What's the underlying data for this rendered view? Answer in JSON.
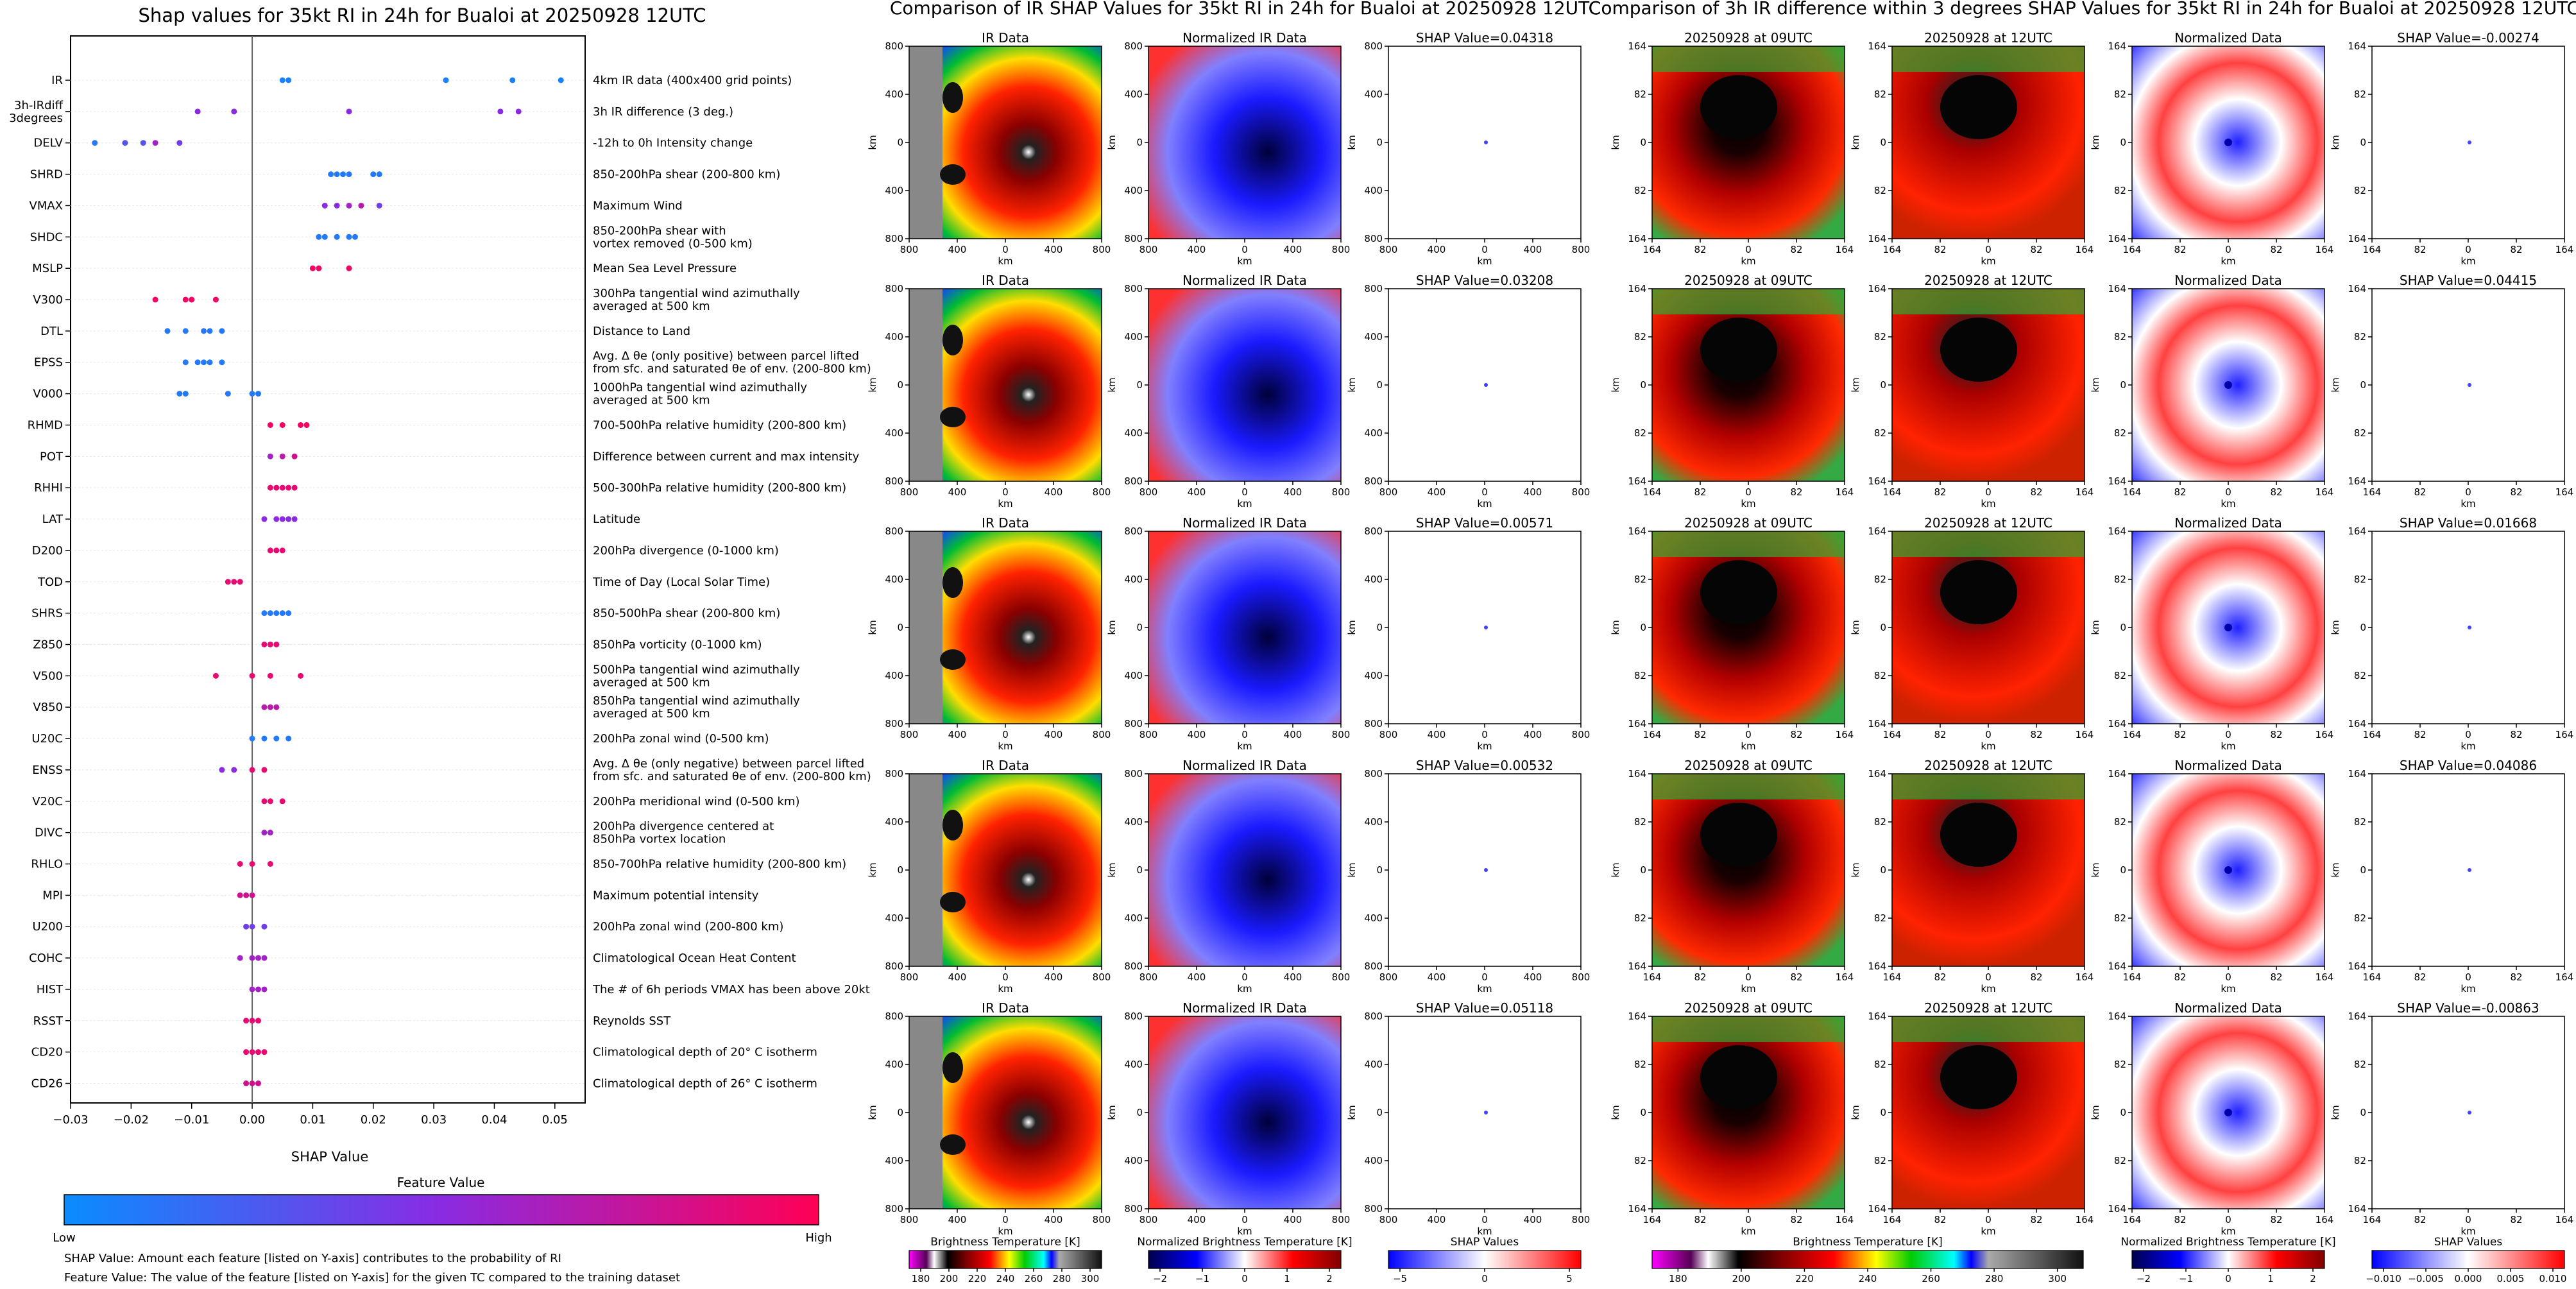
{
  "shap": {
    "title": "Shap values for 35kt RI in 24h for Bualoi at 20250928 12UTC",
    "xlabel": "SHAP Value",
    "xticks": [
      "−0.03",
      "−0.02",
      "−0.01",
      "0.00",
      "0.01",
      "0.02",
      "0.03",
      "0.04",
      "0.05"
    ],
    "colorbar": {
      "title": "Feature Value",
      "low": "Low",
      "high": "High"
    },
    "footnote1": "SHAP Value: Amount each feature [listed on Y-axis] contributes to the probability of RI",
    "footnote2": "Feature Value: The value of the feature [listed on Y-axis] for the given TC compared to the training dataset"
  },
  "chart_data": {
    "type": "scatter",
    "title": "Shap values for 35kt RI in 24h for Bualoi at 20250928 12UTC",
    "xlabel": "SHAP Value",
    "xlim": [
      -0.03,
      0.055
    ],
    "colors": {
      "low": "#0a8cff",
      "mid": "#8a2be2",
      "high": "#ff0055"
    },
    "features": [
      {
        "name": "IR",
        "desc": "4km IR data (400x400 grid points)",
        "points": [
          [
            0.005,
            0.05
          ],
          [
            0.006,
            0.05
          ],
          [
            0.032,
            0.05
          ],
          [
            0.043,
            0.05
          ],
          [
            0.051,
            0.05
          ]
        ]
      },
      {
        "name": "3h-IRdiff\n3degrees",
        "desc": "3h IR difference (3 deg.)",
        "points": [
          [
            -0.009,
            0.5
          ],
          [
            -0.003,
            0.5
          ],
          [
            0.016,
            0.5
          ],
          [
            0.041,
            0.5
          ],
          [
            0.044,
            0.5
          ]
        ]
      },
      {
        "name": "DELV",
        "desc": "-12h to 0h Intensity change",
        "points": [
          [
            -0.026,
            0.1
          ],
          [
            -0.021,
            0.3
          ],
          [
            -0.018,
            0.3
          ],
          [
            -0.016,
            0.6
          ],
          [
            -0.012,
            0.4
          ]
        ]
      },
      {
        "name": "SHRD",
        "desc": "850-200hPa shear (200-800 km)",
        "points": [
          [
            0.013,
            0.1
          ],
          [
            0.014,
            0.1
          ],
          [
            0.015,
            0.1
          ],
          [
            0.016,
            0.1
          ],
          [
            0.02,
            0.1
          ],
          [
            0.021,
            0.1
          ]
        ]
      },
      {
        "name": "VMAX",
        "desc": "Maximum Wind",
        "points": [
          [
            0.012,
            0.5
          ],
          [
            0.014,
            0.5
          ],
          [
            0.016,
            0.6
          ],
          [
            0.018,
            0.7
          ],
          [
            0.021,
            0.4
          ]
        ]
      },
      {
        "name": "SHDC",
        "desc": "850-200hPa shear with\nvortex removed (0-500 km)",
        "points": [
          [
            0.011,
            0.1
          ],
          [
            0.012,
            0.1
          ],
          [
            0.014,
            0.1
          ],
          [
            0.016,
            0.1
          ],
          [
            0.017,
            0.1
          ]
        ]
      },
      {
        "name": "MSLP",
        "desc": "Mean Sea Level Pressure",
        "points": [
          [
            0.01,
            0.95
          ],
          [
            0.011,
            0.95
          ],
          [
            0.016,
            0.95
          ]
        ]
      },
      {
        "name": "V300",
        "desc": "300hPa tangential wind azimuthally\naveraged at 500 km",
        "points": [
          [
            -0.016,
            0.95
          ],
          [
            -0.011,
            0.95
          ],
          [
            -0.01,
            0.95
          ],
          [
            -0.006,
            0.95
          ]
        ]
      },
      {
        "name": "DTL",
        "desc": "Distance to Land",
        "points": [
          [
            -0.014,
            0.1
          ],
          [
            -0.011,
            0.1
          ],
          [
            -0.008,
            0.1
          ],
          [
            -0.007,
            0.1
          ],
          [
            -0.005,
            0.1
          ]
        ]
      },
      {
        "name": "EPSS",
        "desc": "Avg. Δ θe (only positive) between parcel lifted\nfrom sfc. and saturated θe of env. (200-800 km)",
        "points": [
          [
            -0.011,
            0.1
          ],
          [
            -0.009,
            0.1
          ],
          [
            -0.008,
            0.1
          ],
          [
            -0.007,
            0.1
          ],
          [
            -0.005,
            0.1
          ]
        ]
      },
      {
        "name": "V000",
        "desc": "1000hPa tangential wind azimuthally\naveraged at 500 km",
        "points": [
          [
            -0.012,
            0.1
          ],
          [
            -0.011,
            0.1
          ],
          [
            -0.004,
            0.1
          ],
          [
            0.0,
            0.1
          ],
          [
            0.001,
            0.1
          ]
        ]
      },
      {
        "name": "RHMD",
        "desc": "700-500hPa relative humidity (200-800 km)",
        "points": [
          [
            0.003,
            0.95
          ],
          [
            0.005,
            0.95
          ],
          [
            0.008,
            0.95
          ],
          [
            0.009,
            0.95
          ]
        ]
      },
      {
        "name": "POT",
        "desc": "Difference between current and max intensity",
        "points": [
          [
            0.003,
            0.6
          ],
          [
            0.005,
            0.7
          ],
          [
            0.007,
            0.8
          ]
        ]
      },
      {
        "name": "RHHI",
        "desc": "500-300hPa relative humidity (200-800 km)",
        "points": [
          [
            0.003,
            0.9
          ],
          [
            0.004,
            0.9
          ],
          [
            0.005,
            0.9
          ],
          [
            0.006,
            0.9
          ],
          [
            0.007,
            0.9
          ]
        ]
      },
      {
        "name": "LAT",
        "desc": "Latitude",
        "points": [
          [
            0.002,
            0.5
          ],
          [
            0.004,
            0.5
          ],
          [
            0.005,
            0.5
          ],
          [
            0.006,
            0.5
          ],
          [
            0.007,
            0.5
          ]
        ]
      },
      {
        "name": "D200",
        "desc": "200hPa divergence (0-1000 km)",
        "points": [
          [
            0.003,
            0.9
          ],
          [
            0.004,
            0.9
          ],
          [
            0.005,
            0.9
          ]
        ]
      },
      {
        "name": "TOD",
        "desc": "Time of Day (Local Solar Time)",
        "points": [
          [
            -0.004,
            0.9
          ],
          [
            -0.003,
            0.9
          ],
          [
            -0.002,
            0.9
          ]
        ]
      },
      {
        "name": "SHRS",
        "desc": "850-500hPa shear (200-800 km)",
        "points": [
          [
            0.002,
            0.1
          ],
          [
            0.003,
            0.1
          ],
          [
            0.004,
            0.1
          ],
          [
            0.005,
            0.1
          ],
          [
            0.006,
            0.1
          ]
        ]
      },
      {
        "name": "Z850",
        "desc": "850hPa vorticity (0-1000 km)",
        "points": [
          [
            0.002,
            0.9
          ],
          [
            0.003,
            0.9
          ],
          [
            0.004,
            0.9
          ]
        ]
      },
      {
        "name": "V500",
        "desc": "500hPa tangential wind azimuthally\naveraged at 500 km",
        "points": [
          [
            -0.006,
            0.9
          ],
          [
            0.0,
            0.9
          ],
          [
            0.003,
            0.9
          ],
          [
            0.008,
            0.9
          ]
        ]
      },
      {
        "name": "V850",
        "desc": "850hPa tangential wind azimuthally\naveraged at 500 km",
        "points": [
          [
            0.002,
            0.7
          ],
          [
            0.003,
            0.7
          ],
          [
            0.004,
            0.7
          ]
        ]
      },
      {
        "name": "U20C",
        "desc": "200hPa zonal wind (0-500 km)",
        "points": [
          [
            0.0,
            0.1
          ],
          [
            0.002,
            0.1
          ],
          [
            0.004,
            0.1
          ],
          [
            0.006,
            0.1
          ]
        ]
      },
      {
        "name": "ENSS",
        "desc": "Avg. Δ θe (only negative) between parcel lifted\nfrom sfc. and saturated θe of env. (200-800 km)",
        "points": [
          [
            -0.005,
            0.5
          ],
          [
            -0.003,
            0.5
          ],
          [
            0.0,
            0.9
          ],
          [
            0.002,
            0.9
          ]
        ]
      },
      {
        "name": "V20C",
        "desc": "200hPa meridional wind (0-500 km)",
        "points": [
          [
            0.002,
            0.9
          ],
          [
            0.003,
            0.9
          ],
          [
            0.005,
            0.9
          ]
        ]
      },
      {
        "name": "DIVC",
        "desc": "200hPa divergence centered at\n850hPa vortex location",
        "points": [
          [
            0.002,
            0.6
          ],
          [
            0.003,
            0.6
          ]
        ]
      },
      {
        "name": "RHLO",
        "desc": "850-700hPa relative humidity (200-800 km)",
        "points": [
          [
            -0.002,
            0.9
          ],
          [
            0.0,
            0.9
          ],
          [
            0.003,
            0.9
          ]
        ]
      },
      {
        "name": "MPI",
        "desc": "Maximum potential intensity",
        "points": [
          [
            -0.002,
            0.8
          ],
          [
            -0.001,
            0.8
          ],
          [
            0.0,
            0.8
          ]
        ]
      },
      {
        "name": "U200",
        "desc": "200hPa zonal wind (200-800 km)",
        "points": [
          [
            -0.001,
            0.4
          ],
          [
            0.0,
            0.4
          ],
          [
            0.002,
            0.4
          ]
        ]
      },
      {
        "name": "COHC",
        "desc": "Climatological Ocean Heat Content",
        "points": [
          [
            -0.002,
            0.6
          ],
          [
            0.0,
            0.6
          ],
          [
            0.001,
            0.6
          ],
          [
            0.002,
            0.6
          ]
        ]
      },
      {
        "name": "HIST",
        "desc": "The # of 6h periods VMAX has been above 20kt",
        "points": [
          [
            0.0,
            0.6
          ],
          [
            0.001,
            0.6
          ],
          [
            0.002,
            0.6
          ]
        ]
      },
      {
        "name": "RSST",
        "desc": "Reynolds SST",
        "points": [
          [
            -0.001,
            0.9
          ],
          [
            0.0,
            0.9
          ],
          [
            0.001,
            0.9
          ]
        ]
      },
      {
        "name": "CD20",
        "desc": "Climatological depth of 20° C isotherm",
        "points": [
          [
            -0.001,
            0.9
          ],
          [
            0.0,
            0.9
          ],
          [
            0.001,
            0.9
          ],
          [
            0.002,
            0.9
          ]
        ]
      },
      {
        "name": "CD26",
        "desc": "Climatological depth of 26° C isotherm",
        "points": [
          [
            -0.001,
            0.8
          ],
          [
            0.0,
            0.8
          ],
          [
            0.001,
            0.8
          ]
        ]
      }
    ]
  },
  "panels": {
    "title_ir": "Comparison of IR SHAP Values for 35kt RI in 24h for Bualoi at 20250928 12UTC",
    "title_diff": "Comparison of 3h IR difference within 3 degrees SHAP Values for 35kt RI in 24h for Bualoi at 20250928 12UTC",
    "ir_ticks": [
      "800",
      "400",
      "0",
      "400",
      "800"
    ],
    "diff_ticks": [
      "164",
      "82",
      "0",
      "82",
      "164"
    ],
    "axis_unit": "km",
    "col_titles": [
      "IR Data",
      "Normalized IR Data",
      "",
      "20250928 at 09UTC",
      "20250928 at 12UTC",
      "Normalized Data",
      ""
    ],
    "shap_ir": [
      "SHAP Value=0.04318",
      "SHAP Value=0.03208",
      "SHAP Value=0.00571",
      "SHAP Value=0.00532",
      "SHAP Value=0.05118"
    ],
    "shap_diff": [
      "SHAP Value=-0.00274",
      "SHAP Value=0.04415",
      "SHAP Value=0.01668",
      "SHAP Value=0.04086",
      "SHAP Value=-0.00863"
    ],
    "cbars": [
      {
        "label": "Brightness Temperature [K]",
        "ticks": [
          "180",
          "200",
          "220",
          "240",
          "260",
          "280",
          "300"
        ]
      },
      {
        "label": "Normalized Brightness Temperature [K]",
        "ticks": [
          "−2",
          "−1",
          "0",
          "1",
          "2"
        ]
      },
      {
        "label": "SHAP Values",
        "ticks": [
          "−5",
          "0",
          "5"
        ],
        "exp": "1e−5"
      },
      {
        "label": "Brightness Temperature [K]",
        "ticks": [
          "180",
          "200",
          "220",
          "240",
          "260",
          "280",
          "300"
        ]
      },
      {
        "label": "Normalized Brightness Temperature [K]",
        "ticks": [
          "−2",
          "−1",
          "0",
          "1",
          "2"
        ]
      },
      {
        "label": "SHAP Values",
        "ticks": [
          "−0.010",
          "−0.005",
          "0.000",
          "0.005",
          "0.010"
        ]
      }
    ]
  }
}
